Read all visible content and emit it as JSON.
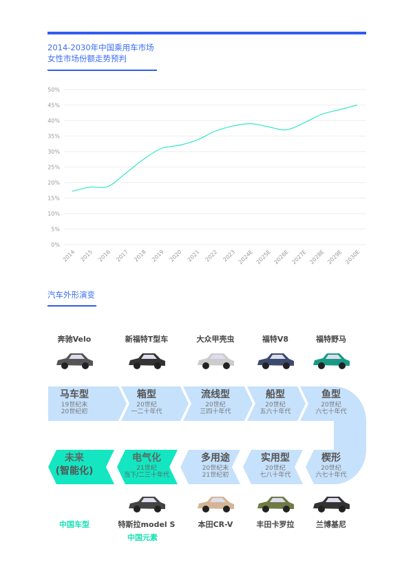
{
  "header": {
    "title_line1": "2014-2030年中国乘用车市场",
    "title_line2": "女性市场份额走势预判",
    "accent": "#2f5cf2"
  },
  "chart_data": {
    "type": "line",
    "title": "2014-2030年中国乘用车市场女性市场份额走势预判",
    "categories": [
      "2014",
      "2015",
      "2016",
      "2017",
      "2018",
      "2019",
      "2020",
      "2021",
      "2022",
      "2023",
      "2024E",
      "2025E",
      "2026E",
      "2027E",
      "2028E",
      "2029E",
      "2030E"
    ],
    "values": [
      17.2,
      18.5,
      18.7,
      23,
      27.5,
      31,
      32,
      33.7,
      36.5,
      38.2,
      39,
      38,
      37,
      39.2,
      42,
      43.5,
      45
    ],
    "y_ticks": [
      "0%",
      "5%",
      "10%",
      "15%",
      "20%",
      "25%",
      "30%",
      "35%",
      "40%",
      "45%",
      "50%"
    ],
    "ylim": [
      0,
      50
    ],
    "y_unit": "%",
    "grid": true,
    "line_color": "#2ee8c4"
  },
  "evolution": {
    "title": "汽车外形演变",
    "top_cars": [
      "奔驰Velo",
      "新福特T型车",
      "大众甲壳虫",
      "福特V8",
      "福特野马"
    ],
    "top_stages": [
      {
        "name": "马车型",
        "line1": "19世纪末",
        "line2": "20世纪初"
      },
      {
        "name": "箱型",
        "line1": "20世纪",
        "line2": "一二十年代"
      },
      {
        "name": "流线型",
        "line1": "20世纪",
        "line2": "三四十年代"
      },
      {
        "name": "船型",
        "line1": "20世纪",
        "line2": "五六十年代"
      },
      {
        "name": "鱼型",
        "line1": "20世纪",
        "line2": "六七十年代"
      }
    ],
    "bottom_stages": [
      {
        "name": "未来",
        "line1": "(智能化)",
        "line2": ""
      },
      {
        "name": "电气化",
        "line1": "21世纪",
        "line2": "当下/二三十年代"
      },
      {
        "name": "多用途",
        "line1": "20世纪末",
        "line2": "21世纪初"
      },
      {
        "name": "实用型",
        "line1": "20世纪",
        "line2": "七八十年代"
      },
      {
        "name": "楔形",
        "line1": "20世纪",
        "line2": "六七十年代"
      }
    ],
    "bottom_cars": [
      "中国车型",
      "特斯拉model S",
      "本田CR-V",
      "丰田卡罗拉",
      "兰博基尼"
    ],
    "extra_label": "中国元素",
    "colors": {
      "light": "#c6e1fb",
      "teal": "#13e6c0"
    }
  }
}
